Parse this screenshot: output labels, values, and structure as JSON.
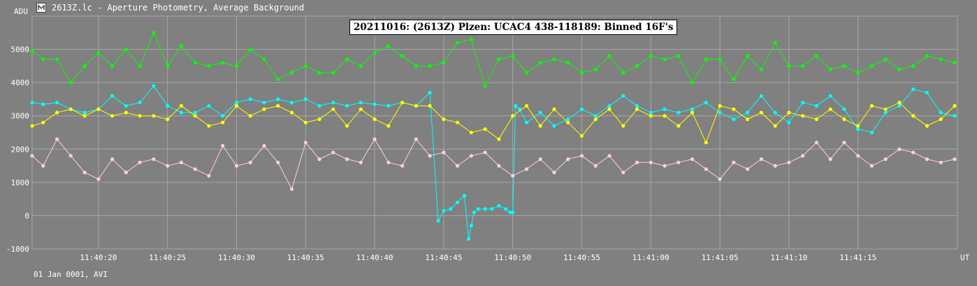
{
  "window": {
    "title": "2613Z.lc - Aperture Photometry, Average Background"
  },
  "footer": {
    "text": "01 Jan 0001, AVI"
  },
  "colors": {
    "background": "#808080",
    "grid": "#a6a6a6",
    "green": "#00ff00",
    "cyan": "#00ffff",
    "yellow": "#ffff00",
    "pink": "#ffd0d0"
  },
  "chart_data": {
    "type": "scatter",
    "title": "20211016: (2613Z) Plzen: UCAC4 438-118189: Binned 16F's",
    "xlabel": "UT",
    "ylabel": "ADU",
    "grid": true,
    "ylim": [
      -1000,
      6000
    ],
    "yticks": [
      5000,
      4000,
      3000,
      2000,
      1000,
      0,
      -1000
    ],
    "xlim_seconds": [
      15.2,
      82.2
    ],
    "xticks": [
      {
        "t": 20,
        "label": "11:40:20"
      },
      {
        "t": 25,
        "label": "11:40:25"
      },
      {
        "t": 30,
        "label": "11:40:30"
      },
      {
        "t": 35,
        "label": "11:40:35"
      },
      {
        "t": 40,
        "label": "11:40:40"
      },
      {
        "t": 45,
        "label": "11:40:45"
      },
      {
        "t": 50,
        "label": "11:40:50"
      },
      {
        "t": 55,
        "label": "11:40:55"
      },
      {
        "t": 60,
        "label": "11:41:00"
      },
      {
        "t": 65,
        "label": "11:41:05"
      },
      {
        "t": 70,
        "label": "11:41:10"
      },
      {
        "t": 75,
        "label": "11:41:15"
      }
    ],
    "series": [
      {
        "color": "green",
        "x": [
          15.2,
          16.0,
          17.0,
          18.0,
          19.0,
          20.0,
          21.0,
          22.0,
          23.0,
          24.0,
          25.0,
          26.0,
          27.0,
          28.0,
          29.0,
          30.0,
          31.0,
          32.0,
          33.0,
          34.0,
          35.0,
          36.0,
          37.0,
          38.0,
          39.0,
          40.0,
          41.0,
          42.0,
          43.0,
          44.0,
          45.0,
          46.0,
          47.0,
          48.0,
          49.0,
          50.0,
          51.0,
          52.0,
          53.0,
          54.0,
          55.0,
          56.0,
          57.0,
          58.0,
          59.0,
          60.0,
          61.0,
          62.0,
          63.0,
          64.0,
          65.0,
          66.0,
          67.0,
          68.0,
          69.0,
          70.0,
          71.0,
          72.0,
          73.0,
          74.0,
          75.0,
          76.0,
          77.0,
          78.0,
          79.0,
          80.0,
          81.0,
          82.0
        ],
        "y": [
          4950,
          4700,
          4700,
          4000,
          4500,
          4900,
          4500,
          5000,
          4500,
          5500,
          4500,
          5100,
          4600,
          4500,
          4600,
          4500,
          5000,
          4700,
          4100,
          4300,
          4500,
          4300,
          4300,
          4700,
          4500,
          4900,
          5100,
          4800,
          4500,
          4500,
          4600,
          5200,
          5300,
          3900,
          4700,
          4800,
          4300,
          4600,
          4700,
          4600,
          4300,
          4400,
          4800,
          4300,
          4500,
          4800,
          4700,
          4800,
          4000,
          4700,
          4700,
          4100,
          4800,
          4400,
          5200,
          4500,
          4500,
          4800,
          4400,
          4500,
          4300,
          4500,
          4700,
          4400,
          4500,
          4800,
          4700,
          4600
        ]
      },
      {
        "color": "cyan",
        "x": [
          15.2,
          16.0,
          17.0,
          18.0,
          19.0,
          20.0,
          21.0,
          22.0,
          23.0,
          24.0,
          25.0,
          26.0,
          27.0,
          28.0,
          29.0,
          30.0,
          31.0,
          32.0,
          33.0,
          34.0,
          35.0,
          36.0,
          37.0,
          38.0,
          39.0,
          40.0,
          41.0,
          42.0,
          43.0,
          44.0,
          44.6,
          45.0,
          45.5,
          46.0,
          46.5,
          46.8,
          47.0,
          47.2,
          47.5,
          48.0,
          48.5,
          49.0,
          49.5,
          49.8,
          50.0,
          50.2,
          50.5,
          51.0,
          52.0,
          53.0,
          54.0,
          55.0,
          56.0,
          57.0,
          58.0,
          59.0,
          60.0,
          61.0,
          62.0,
          63.0,
          64.0,
          65.0,
          66.0,
          67.0,
          68.0,
          69.0,
          70.0,
          71.0,
          72.0,
          73.0,
          74.0,
          75.0,
          76.0,
          77.0,
          78.0,
          79.0,
          80.0,
          81.0,
          82.0
        ],
        "y": [
          3400,
          3350,
          3400,
          3200,
          3100,
          3200,
          3600,
          3300,
          3400,
          3900,
          3300,
          3100,
          3100,
          3300,
          3000,
          3400,
          3500,
          3400,
          3500,
          3400,
          3500,
          3300,
          3400,
          3300,
          3400,
          3350,
          3300,
          3400,
          3300,
          3700,
          -150,
          150,
          200,
          400,
          600,
          -700,
          -300,
          100,
          200,
          200,
          200,
          300,
          200,
          100,
          100,
          3300,
          3200,
          2800,
          3100,
          2700,
          2900,
          3200,
          3000,
          3300,
          3600,
          3300,
          3100,
          3200,
          3100,
          3200,
          3400,
          3100,
          2900,
          3100,
          3600,
          3100,
          2800,
          3400,
          3300,
          3600,
          3200,
          2600,
          2500,
          3100,
          3300,
          3800,
          3700,
          3100,
          3000
        ]
      },
      {
        "color": "yellow",
        "x": [
          15.2,
          16.0,
          17.0,
          18.0,
          19.0,
          20.0,
          21.0,
          22.0,
          23.0,
          24.0,
          25.0,
          26.0,
          27.0,
          28.0,
          29.0,
          30.0,
          31.0,
          32.0,
          33.0,
          34.0,
          35.0,
          36.0,
          37.0,
          38.0,
          39.0,
          40.0,
          41.0,
          42.0,
          43.0,
          44.0,
          45.0,
          46.0,
          47.0,
          48.0,
          49.0,
          50.0,
          51.0,
          52.0,
          53.0,
          54.0,
          55.0,
          56.0,
          57.0,
          58.0,
          59.0,
          60.0,
          61.0,
          62.0,
          63.0,
          64.0,
          65.0,
          66.0,
          67.0,
          68.0,
          69.0,
          70.0,
          71.0,
          72.0,
          73.0,
          74.0,
          75.0,
          76.0,
          77.0,
          78.0,
          79.0,
          80.0,
          81.0,
          82.0
        ],
        "y": [
          2700,
          2800,
          3100,
          3200,
          3000,
          3200,
          3000,
          3100,
          3000,
          3000,
          2900,
          3300,
          3000,
          2700,
          2800,
          3300,
          3000,
          3200,
          3300,
          3100,
          2800,
          2900,
          3200,
          2700,
          3200,
          2900,
          2700,
          3400,
          3300,
          3300,
          2900,
          2800,
          2500,
          2600,
          2300,
          3000,
          3300,
          2700,
          3200,
          2800,
          2400,
          2900,
          3200,
          2700,
          3200,
          3000,
          3000,
          2700,
          3100,
          2200,
          3300,
          3200,
          2900,
          3100,
          2700,
          3100,
          3000,
          2900,
          3200,
          2900,
          2700,
          3300,
          3200,
          3400,
          3000,
          2700,
          2900,
          3300
        ]
      },
      {
        "color": "pink",
        "x": [
          15.2,
          16.0,
          17.0,
          18.0,
          19.0,
          20.0,
          21.0,
          22.0,
          23.0,
          24.0,
          25.0,
          26.0,
          27.0,
          28.0,
          29.0,
          30.0,
          31.0,
          32.0,
          33.0,
          34.0,
          35.0,
          36.0,
          37.0,
          38.0,
          39.0,
          40.0,
          41.0,
          42.0,
          43.0,
          44.0,
          45.0,
          46.0,
          47.0,
          48.0,
          49.0,
          50.0,
          51.0,
          52.0,
          53.0,
          54.0,
          55.0,
          56.0,
          57.0,
          58.0,
          59.0,
          60.0,
          61.0,
          62.0,
          63.0,
          64.0,
          65.0,
          66.0,
          67.0,
          68.0,
          69.0,
          70.0,
          71.0,
          72.0,
          73.0,
          74.0,
          75.0,
          76.0,
          77.0,
          78.0,
          79.0,
          80.0,
          81.0,
          82.0
        ],
        "y": [
          1800,
          1500,
          2300,
          1800,
          1300,
          1100,
          1700,
          1300,
          1600,
          1700,
          1500,
          1600,
          1400,
          1200,
          2100,
          1500,
          1600,
          2100,
          1600,
          800,
          2200,
          1700,
          1900,
          1700,
          1600,
          2300,
          1600,
          1500,
          2300,
          1800,
          1900,
          1500,
          1800,
          1900,
          1500,
          1200,
          1400,
          1700,
          1300,
          1700,
          1800,
          1500,
          1800,
          1300,
          1600,
          1600,
          1500,
          1600,
          1700,
          1400,
          1100,
          1600,
          1400,
          1700,
          1500,
          1600,
          1800,
          2200,
          1700,
          2200,
          1800,
          1500,
          1700,
          2000,
          1900,
          1700,
          1600,
          1700
        ]
      }
    ]
  }
}
